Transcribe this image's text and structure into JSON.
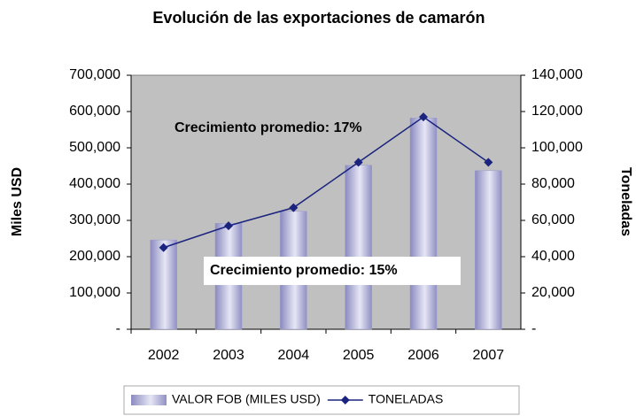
{
  "chart_data": {
    "type": "bar",
    "title": "Evolución de las exportaciones de camarón",
    "y_label": "Miles USD",
    "y2_label": "Toneladas",
    "categories": [
      "2002",
      "2003",
      "2004",
      "2005",
      "2006",
      "2007"
    ],
    "series": [
      {
        "name": "VALOR FOB (MILES USD)",
        "type": "bar",
        "color": "#9999cc",
        "values": [
          246000,
          292000,
          325000,
          452000,
          582000,
          437000
        ]
      },
      {
        "name": "TONELADAS",
        "type": "line",
        "axis": "y2",
        "color": "#1a237e",
        "values": [
          45000,
          57000,
          67000,
          92000,
          117000,
          92000
        ]
      }
    ],
    "ylim": [
      0,
      700000
    ],
    "yticks": [
      {
        "value": 0,
        "label": "-"
      },
      {
        "value": 100000,
        "label": "100,000"
      },
      {
        "value": 200000,
        "label": "200,000"
      },
      {
        "value": 300000,
        "label": "300,000"
      },
      {
        "value": 400000,
        "label": "400,000"
      },
      {
        "value": 500000,
        "label": "500,000"
      },
      {
        "value": 600000,
        "label": "600,000"
      },
      {
        "value": 700000,
        "label": "700,000"
      }
    ],
    "y2lim": [
      0,
      140000
    ],
    "y2ticks": [
      {
        "value": 0,
        "label": "-"
      },
      {
        "value": 20000,
        "label": "20,000"
      },
      {
        "value": 40000,
        "label": "40,000"
      },
      {
        "value": 60000,
        "label": "60,000"
      },
      {
        "value": 80000,
        "label": "80,000"
      },
      {
        "value": 100000,
        "label": "100,000"
      },
      {
        "value": 120000,
        "label": "120,000"
      },
      {
        "value": 140000,
        "label": "140,000"
      }
    ],
    "annotations": [
      "Crecimiento promedio: 17%",
      "Crecimiento promedio: 15%"
    ],
    "legend": "bottom"
  }
}
